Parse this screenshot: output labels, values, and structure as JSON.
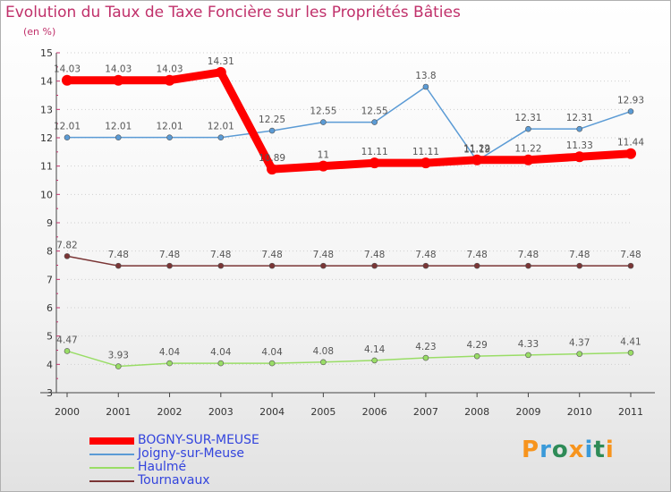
{
  "header": {
    "title": "Evolution du Taux de Taxe Foncière sur les Propriétés Bâties",
    "unit": "(en %)"
  },
  "chart_data": {
    "type": "line",
    "title": "Evolution du Taux de Taxe Foncière sur les Propriétés Bâties",
    "ylabel": "(en %)",
    "xlabel": "",
    "x": [
      "2000",
      "2001",
      "2002",
      "2003",
      "2004",
      "2005",
      "2006",
      "2007",
      "2008",
      "2009",
      "2010",
      "2011"
    ],
    "ylim": [
      3,
      15
    ],
    "yticks": [
      3,
      4,
      5,
      6,
      7,
      8,
      9,
      10,
      11,
      12,
      13,
      14,
      15
    ],
    "grid": "horizontal dotted",
    "series": [
      {
        "name": "BOGNY-SUR-MEUSE",
        "color": "#ff0000",
        "values": [
          14.03,
          14.03,
          14.03,
          14.31,
          10.89,
          11,
          11.11,
          11.11,
          11.22,
          11.22,
          11.33,
          11.44
        ],
        "labels": [
          "14.03",
          "14.03",
          "14.03",
          "14.31",
          "10.89",
          "11",
          "11.11",
          "11.11",
          "11.22",
          "11.22",
          "11.33",
          "11.44"
        ]
      },
      {
        "name": "Joigny-sur-Meuse",
        "color": "#5b9bd5",
        "values": [
          12.01,
          12.01,
          12.01,
          12.01,
          12.25,
          12.55,
          12.55,
          13.8,
          11.19,
          12.31,
          12.31,
          12.93
        ],
        "labels": [
          "12.01",
          "12.01",
          "12.01",
          "12.01",
          "12.25",
          "12.55",
          "12.55",
          "13.8",
          "11.19",
          "12.31",
          "12.31",
          "12.93"
        ]
      },
      {
        "name": "Haulmé",
        "color": "#99dd66",
        "values": [
          4.47,
          3.93,
          4.04,
          4.04,
          4.04,
          4.08,
          4.14,
          4.23,
          4.29,
          4.33,
          4.37,
          4.41
        ],
        "labels": [
          "4.47",
          "3.93",
          "4.04",
          "4.04",
          "4.04",
          "4.08",
          "4.14",
          "4.23",
          "4.29",
          "4.33",
          "4.37",
          "4.41"
        ]
      },
      {
        "name": "Tournavaux",
        "color": "#7a3535",
        "values": [
          7.82,
          7.48,
          7.48,
          7.48,
          7.48,
          7.48,
          7.48,
          7.48,
          7.48,
          7.48,
          7.48,
          7.48
        ],
        "labels": [
          "7.82",
          "7.48",
          "7.48",
          "7.48",
          "7.48",
          "7.48",
          "7.48",
          "7.48",
          "7.48",
          "7.48",
          "7.48",
          "7.48"
        ]
      }
    ]
  },
  "legend": {
    "items": [
      {
        "label": "BOGNY-SUR-MEUSE",
        "color": "#ff0000"
      },
      {
        "label": "Joigny-sur-Meuse",
        "color": "#5b9bd5"
      },
      {
        "label": "Haulmé",
        "color": "#99dd66"
      },
      {
        "label": "Tournavaux",
        "color": "#7a3535"
      }
    ]
  },
  "logo": {
    "letters": [
      "P",
      "r",
      "o",
      "x",
      "i",
      "t",
      "i"
    ],
    "colors": [
      "#f7941d",
      "#3a9ad9",
      "#2e8b57",
      "#f7941d",
      "#3a9ad9",
      "#2e8b57",
      "#f7941d"
    ]
  }
}
